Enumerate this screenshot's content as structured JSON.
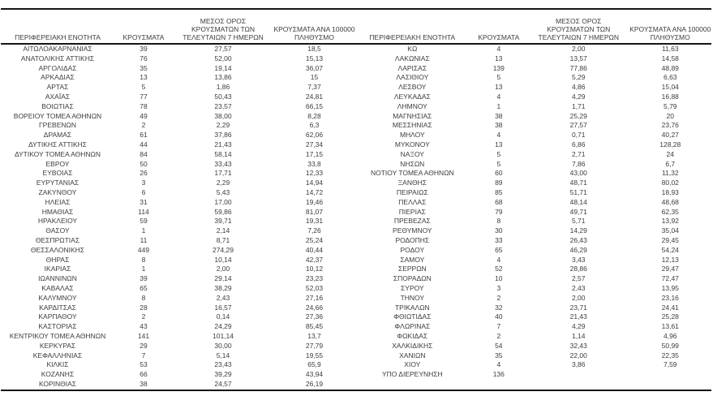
{
  "document": {
    "type": "regional-covid-cases-report-table"
  },
  "colors": {
    "background": "#ffffff",
    "text": "#3d3d3d",
    "rule_line": "#161616"
  },
  "table": {
    "headers": {
      "region": "ΠΕΡΙΦΕΡΕΙΑΚΗ ΕΝΟΤΗΤΑ",
      "cases": "ΚΡΟΥΣΜΑΤΑ",
      "avg7": "ΜΕΣΟΣ ΟΡΟΣ\nΚΡΟΥΣΜΑΤΩΝ ΤΩΝ\nΤΕΛΕΥΤΑΙΩΝ 7 ΗΜΕΡΩΝ",
      "per100k": "ΚΡΟΥΣΜΑΤΑ ΑΝΑ 100000\nΠΛΗΘΥΣΜΟ"
    },
    "left_rows": [
      [
        "ΑΙΤΩΛΟΑΚΑΡΝΑΝΙΑΣ",
        "39",
        "27,57",
        "18,5"
      ],
      [
        "ΑΝΑΤΟΛΙΚΗΣ ΑΤΤΙΚΗΣ",
        "76",
        "52,00",
        "15,13"
      ],
      [
        "ΑΡΓΟΛΙΔΑΣ",
        "35",
        "19,14",
        "36,07"
      ],
      [
        "ΑΡΚΑΔΙΑΣ",
        "13",
        "13,86",
        "15"
      ],
      [
        "ΑΡΤΑΣ",
        "5",
        "1,86",
        "7,37"
      ],
      [
        "ΑΧΑΪΑΣ",
        "77",
        "50,43",
        "24,81"
      ],
      [
        "ΒΟΙΩΤΙΑΣ",
        "78",
        "23,57",
        "66,15"
      ],
      [
        "ΒΟΡΕΙΟΥ ΤΟΜΕΑ ΑΘΗΝΩΝ",
        "49",
        "38,00",
        "8,28"
      ],
      [
        "ΓΡΕΒΕΝΩΝ",
        "2",
        "2,29",
        "6,3"
      ],
      [
        "ΔΡΑΜΑΣ",
        "61",
        "37,86",
        "62,06"
      ],
      [
        "ΔΥΤΙΚΗΣ ΑΤΤΙΚΗΣ",
        "44",
        "21,43",
        "27,34"
      ],
      [
        "ΔΥΤΙΚΟΥ ΤΟΜΕΑ ΑΘΗΝΩΝ",
        "84",
        "58,14",
        "17,15"
      ],
      [
        "ΕΒΡΟΥ",
        "50",
        "33,43",
        "33,8"
      ],
      [
        "ΕΥΒΟΙΑΣ",
        "26",
        "17,71",
        "12,33"
      ],
      [
        "ΕΥΡΥΤΑΝΙΑΣ",
        "3",
        "2,29",
        "14,94"
      ],
      [
        "ΖΑΚΥΝΘΟΥ",
        "6",
        "5,43",
        "14,72"
      ],
      [
        "ΗΛΕΙΑΣ",
        "31",
        "17,00",
        "19,46"
      ],
      [
        "ΗΜΑΘΙΑΣ",
        "114",
        "59,86",
        "81,07"
      ],
      [
        "ΗΡΑΚΛΕΙΟΥ",
        "59",
        "39,71",
        "19,31"
      ],
      [
        "ΘΑΣΟΥ",
        "1",
        "2,14",
        "7,26"
      ],
      [
        "ΘΕΣΠΡΩΤΙΑΣ",
        "11",
        "8,71",
        "25,24"
      ],
      [
        "ΘΕΣΣΑΛΟΝΙΚΗΣ",
        "449",
        "274,29",
        "40,44"
      ],
      [
        "ΘΗΡΑΣ",
        "8",
        "10,14",
        "42,37"
      ],
      [
        "ΙΚΑΡΙΑΣ",
        "1",
        "2,00",
        "10,12"
      ],
      [
        "ΙΩΑΝΝΙΝΩΝ",
        "39",
        "29,14",
        "23,23"
      ],
      [
        "ΚΑΒΑΛΑΣ",
        "65",
        "38,29",
        "52,03"
      ],
      [
        "ΚΑΛΥΜΝΟΥ",
        "8",
        "2,43",
        "27,16"
      ],
      [
        "ΚΑΡΔΙΤΣΑΣ",
        "28",
        "16,57",
        "24,66"
      ],
      [
        "ΚΑΡΠΑΘΟΥ",
        "2",
        "0,14",
        "27,36"
      ],
      [
        "ΚΑΣΤΟΡΙΑΣ",
        "43",
        "24,29",
        "85,45"
      ],
      [
        "ΚΕΝΤΡΙΚΟΥ ΤΟΜΕΑ ΑΘΗΝΩΝ",
        "141",
        "101,14",
        "13,7"
      ],
      [
        "ΚΕΡΚΥΡΑΣ",
        "29",
        "30,00",
        "27,79"
      ],
      [
        "ΚΕΦΑΛΛΗΝΙΑΣ",
        "7",
        "5,14",
        "19,55"
      ],
      [
        "ΚΙΛΚΙΣ",
        "53",
        "23,43",
        "65,9"
      ],
      [
        "ΚΟΖΑΝΗΣ",
        "66",
        "39,29",
        "43,94"
      ],
      [
        "ΚΟΡΙΝΘΙΑΣ",
        "38",
        "24,57",
        "26,19"
      ]
    ],
    "right_rows": [
      [
        "ΚΩ",
        "4",
        "2,00",
        "11,63"
      ],
      [
        "ΛΑΚΩΝΙΑΣ",
        "13",
        "13,57",
        "14,58"
      ],
      [
        "ΛΑΡΙΣΑΣ",
        "139",
        "77,86",
        "48,89"
      ],
      [
        "ΛΑΣΙΘΙΟΥ",
        "5",
        "5,29",
        "6,63"
      ],
      [
        "ΛΕΣΒΟΥ",
        "13",
        "4,86",
        "15,04"
      ],
      [
        "ΛΕΥΚΑΔΑΣ",
        "4",
        "4,29",
        "16,88"
      ],
      [
        "ΛΗΜΝΟΥ",
        "1",
        "1,71",
        "5,79"
      ],
      [
        "ΜΑΓΝΗΣΙΑΣ",
        "38",
        "25,29",
        "20"
      ],
      [
        "ΜΕΣΣΗΝΙΑΣ",
        "38",
        "27,57",
        "23,76"
      ],
      [
        "ΜΗΛΟΥ",
        "4",
        "0,71",
        "40,27"
      ],
      [
        "ΜΥΚΟΝΟΥ",
        "13",
        "6,86",
        "128,28"
      ],
      [
        "ΝΑΞΟΥ",
        "5",
        "2,71",
        "24"
      ],
      [
        "ΝΗΣΩΝ",
        "5",
        "7,86",
        "6,7"
      ],
      [
        "ΝΟΤΙΟΥ ΤΟΜΕΑ ΑΘΗΝΩΝ",
        "60",
        "43,00",
        "11,32"
      ],
      [
        "ΞΑΝΘΗΣ",
        "89",
        "48,71",
        "80,02"
      ],
      [
        "ΠΕΙΡΑΙΩΣ",
        "85",
        "51,71",
        "18,93"
      ],
      [
        "ΠΕΛΛΑΣ",
        "68",
        "48,14",
        "48,68"
      ],
      [
        "ΠΙΕΡΙΑΣ",
        "79",
        "49,71",
        "62,35"
      ],
      [
        "ΠΡΕΒΕΖΑΣ",
        "8",
        "5,71",
        "13,92"
      ],
      [
        "ΡΕΘΥΜΝΟΥ",
        "30",
        "14,29",
        "35,04"
      ],
      [
        "ΡΟΔΟΠΗΣ",
        "33",
        "26,43",
        "29,45"
      ],
      [
        "ΡΟΔΟΥ",
        "65",
        "46,29",
        "54,24"
      ],
      [
        "ΣΑΜΟΥ",
        "4",
        "3,43",
        "12,13"
      ],
      [
        "ΣΕΡΡΩΝ",
        "52",
        "28,86",
        "29,47"
      ],
      [
        "ΣΠΟΡΑΔΩΝ",
        "10",
        "2,57",
        "72,47"
      ],
      [
        "ΣΥΡΟΥ",
        "3",
        "2,43",
        "13,95"
      ],
      [
        "ΤΗΝΟΥ",
        "2",
        "2,00",
        "23,16"
      ],
      [
        "ΤΡΙΚΑΛΩΝ",
        "32",
        "23,71",
        "24,41"
      ],
      [
        "ΦΘΙΩΤΙΔΑΣ",
        "40",
        "21,43",
        "25,28"
      ],
      [
        "ΦΛΩΡΙΝΑΣ",
        "7",
        "4,29",
        "13,61"
      ],
      [
        "ΦΩΚΙΔΑΣ",
        "2",
        "1,14",
        "4,96"
      ],
      [
        "ΧΑΛΚΙΔΙΚΗΣ",
        "54",
        "32,43",
        "50,99"
      ],
      [
        "ΧΑΝΙΩΝ",
        "35",
        "22,00",
        "22,35"
      ],
      [
        "ΧΙΟΥ",
        "4",
        "3,86",
        "7,59"
      ],
      [
        "ΥΠΟ ΔΙΕΡΕΥΝΗΣΗ",
        "136",
        "",
        ""
      ]
    ]
  }
}
